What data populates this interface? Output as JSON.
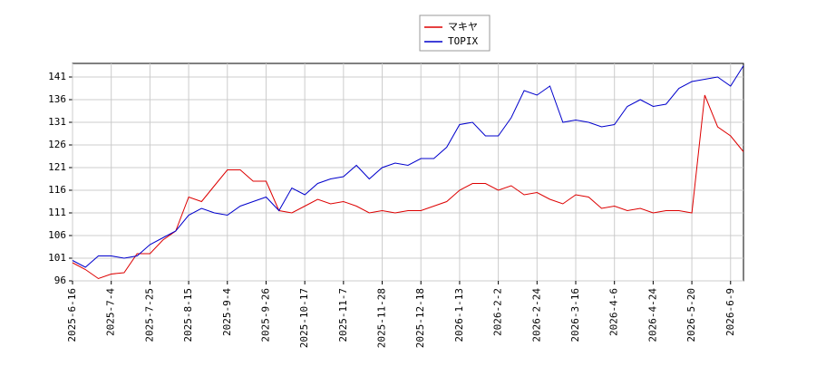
{
  "chart_data": {
    "type": "line",
    "categories": [
      "2025-6-16",
      null,
      null,
      "2025-7-4",
      null,
      null,
      "2025-7-25",
      null,
      null,
      "2025-8-15",
      null,
      null,
      "2025-9-4",
      null,
      null,
      "2025-9-26",
      null,
      null,
      "2025-10-17",
      null,
      null,
      "2025-11-7",
      null,
      null,
      "2025-11-28",
      null,
      null,
      "2025-12-18",
      null,
      null,
      "2026-1-13",
      null,
      null,
      "2026-2-2",
      null,
      null,
      "2026-2-24",
      null,
      null,
      "2026-3-16",
      null,
      null,
      "2026-4-6",
      null,
      null,
      "2026-4-24",
      null,
      null,
      "2026-5-20",
      null,
      null,
      "2026-6-9",
      null
    ],
    "series": [
      {
        "name": "マキヤ",
        "color": "#dd0000",
        "values": [
          100,
          98.5,
          96.5,
          97.5,
          97.8,
          102,
          102,
          105,
          107,
          114.5,
          113.5,
          117,
          120.5,
          120.5,
          118,
          118,
          111.5,
          111,
          112.5,
          114,
          113,
          113.5,
          112.5,
          111,
          111.5,
          111,
          111.5,
          111.5,
          112.5,
          113.5,
          116,
          117.5,
          117.5,
          116,
          117,
          115,
          115.5,
          114,
          113,
          115,
          114.5,
          112,
          112.5,
          111.5,
          112,
          111,
          111.5,
          111.5,
          111,
          137,
          130,
          128,
          124.5
        ]
      },
      {
        "name": "TOPIX",
        "color": "#0000cc",
        "values": [
          100.5,
          99,
          101.5,
          101.5,
          101,
          101.5,
          104,
          105.5,
          107,
          110.5,
          112,
          111,
          110.5,
          112.5,
          113.5,
          114.5,
          111.5,
          116.5,
          115,
          117.5,
          118.5,
          119,
          121.5,
          118.5,
          121,
          122,
          121.5,
          123,
          123,
          125.5,
          130.5,
          131,
          128,
          128,
          132,
          138,
          137,
          139,
          131,
          131.5,
          131,
          130,
          130.5,
          134.5,
          136,
          134.5,
          135,
          138.5,
          140,
          140.5,
          141,
          139,
          143.5
        ]
      }
    ],
    "ylim": [
      96,
      144
    ],
    "yticks": [
      96,
      101,
      106,
      111,
      116,
      121,
      126,
      131,
      136,
      141
    ],
    "grid": true
  }
}
